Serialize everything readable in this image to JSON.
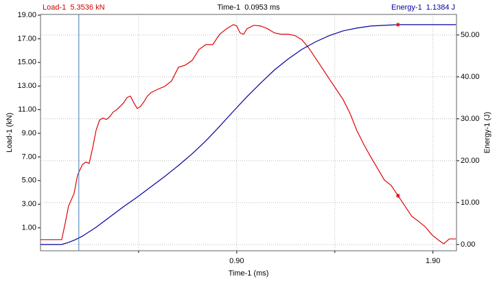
{
  "chart_data": {
    "type": "line",
    "readouts": {
      "left": "Load-1  5.3536 kN",
      "center": "Time-1  0.0953 ms",
      "right": "Energy-1  1.1384 J"
    },
    "x_label": "Time-1 (ms)",
    "y_label": "Load-1 (kN)",
    "y2_label": "Energy-1 (J)",
    "xlim": [
      -0.1,
      2.02
    ],
    "xticks": [
      {
        "value": 0.9,
        "label": "0.90"
      },
      {
        "value": 1.9,
        "label": "1.90"
      }
    ],
    "xminor": [
      0.4,
      1.4
    ],
    "ylim": [
      -0.94,
      19.06
    ],
    "yticks": [
      {
        "value": 1,
        "label": "1.00"
      },
      {
        "value": 3,
        "label": "3.00"
      },
      {
        "value": 5,
        "label": "5.00"
      },
      {
        "value": 7,
        "label": "7.00"
      },
      {
        "value": 9,
        "label": "9.00"
      },
      {
        "value": 11,
        "label": "11.00"
      },
      {
        "value": 13,
        "label": "13.00"
      },
      {
        "value": 15,
        "label": "15.00"
      },
      {
        "value": 17,
        "label": "17.00"
      },
      {
        "value": 19,
        "label": "19.00"
      }
    ],
    "y2lim": [
      -1.5,
      54.9
    ],
    "y2ticks": [
      {
        "value": 0,
        "label": "0.00"
      },
      {
        "value": 10,
        "label": "10.00"
      },
      {
        "value": 20,
        "label": "20.00"
      },
      {
        "value": 30,
        "label": "30.00"
      },
      {
        "value": 40,
        "label": "40.00"
      },
      {
        "value": 50,
        "label": "50.00"
      }
    ],
    "grid": true,
    "cursor_x": 0.0953,
    "cursor_color": "#3a7ab8",
    "marker_x": 1.722,
    "series": [
      {
        "name": "Load-1",
        "color": "#e00000",
        "axis": "y",
        "x": [
          -0.1,
          0.008,
          0.026,
          0.043,
          0.071,
          0.089,
          0.113,
          0.131,
          0.148,
          0.166,
          0.183,
          0.201,
          0.218,
          0.236,
          0.253,
          0.271,
          0.288,
          0.306,
          0.323,
          0.341,
          0.358,
          0.376,
          0.393,
          0.41,
          0.428,
          0.445,
          0.463,
          0.498,
          0.533,
          0.568,
          0.603,
          0.638,
          0.673,
          0.708,
          0.743,
          0.778,
          0.813,
          0.848,
          0.883,
          0.9,
          0.917,
          0.935,
          0.952,
          0.987,
          1.022,
          1.057,
          1.092,
          1.127,
          1.162,
          1.197,
          1.232,
          1.267,
          1.302,
          1.337,
          1.372,
          1.407,
          1.442,
          1.477,
          1.512,
          1.547,
          1.582,
          1.617,
          1.652,
          1.687,
          1.722,
          1.757,
          1.792,
          1.825,
          1.86,
          1.895,
          1.93,
          1.955,
          1.983,
          2.017
        ],
        "values": [
          0,
          0,
          1.4,
          2.85,
          3.9,
          5.47,
          6.34,
          6.57,
          6.45,
          7.79,
          9.24,
          10.12,
          10.29,
          10.17,
          10.41,
          10.81,
          10.99,
          11.28,
          11.57,
          12.03,
          12.15,
          11.57,
          11.1,
          11.28,
          11.69,
          12.15,
          12.44,
          12.73,
          12.97,
          13.43,
          14.59,
          14.77,
          15.17,
          16.1,
          16.51,
          16.51,
          17.38,
          17.85,
          18.2,
          18.08,
          17.5,
          17.38,
          17.85,
          18.14,
          18.08,
          17.85,
          17.5,
          17.38,
          17.38,
          17.27,
          16.92,
          16.22,
          15.35,
          14.48,
          13.6,
          12.73,
          11.86,
          10.7,
          9.24,
          8.08,
          7.03,
          6.05,
          5.06,
          4.59,
          3.72,
          2.85,
          1.98,
          1.57,
          1.1,
          0.41,
          -0.06,
          -0.35,
          0.06,
          0.06
        ]
      },
      {
        "name": "Energy-1",
        "color": "#00009c",
        "axis": "y2",
        "x": [
          -0.1,
          0.008,
          0.043,
          0.078,
          0.113,
          0.183,
          0.253,
          0.323,
          0.393,
          0.463,
          0.533,
          0.603,
          0.673,
          0.743,
          0.813,
          0.883,
          0.952,
          1.022,
          1.092,
          1.162,
          1.232,
          1.302,
          1.372,
          1.442,
          1.512,
          1.582,
          1.652,
          1.722,
          2.017
        ],
        "values": [
          0,
          0,
          0.49,
          1.15,
          1.97,
          4.1,
          6.56,
          9.02,
          11.31,
          13.77,
          16.23,
          18.85,
          21.64,
          24.75,
          28.2,
          31.8,
          35.25,
          38.52,
          41.64,
          44.26,
          46.56,
          48.36,
          49.84,
          50.98,
          51.64,
          52.13,
          52.3,
          52.46,
          52.46
        ]
      }
    ]
  }
}
